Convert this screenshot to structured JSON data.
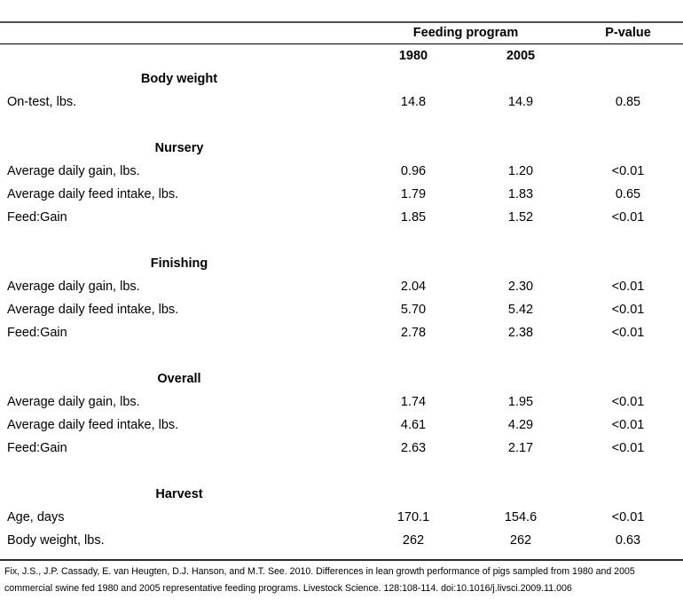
{
  "table": {
    "header": {
      "group_label": "Feeding program",
      "pvalue_label": "P-value",
      "years": [
        "1980",
        "2005"
      ]
    },
    "sections": [
      {
        "title": "Body weight",
        "rows": [
          {
            "label": "On-test, lbs.",
            "v1980": "14.8",
            "v2005": "14.9",
            "p": "0.85"
          }
        ]
      },
      {
        "title": "Nursery",
        "rows": [
          {
            "label": "Average daily gain, lbs.",
            "v1980": "0.96",
            "v2005": "1.20",
            "p": "<0.01"
          },
          {
            "label": "Average daily feed intake, lbs.",
            "v1980": "1.79",
            "v2005": "1.83",
            "p": "0.65"
          },
          {
            "label": "Feed:Gain",
            "v1980": "1.85",
            "v2005": "1.52",
            "p": "<0.01"
          }
        ]
      },
      {
        "title": "Finishing",
        "rows": [
          {
            "label": "Average daily gain, lbs.",
            "v1980": "2.04",
            "v2005": "2.30",
            "p": "<0.01"
          },
          {
            "label": "Average daily feed intake, lbs.",
            "v1980": "5.70",
            "v2005": "5.42",
            "p": "<0.01"
          },
          {
            "label": "Feed:Gain",
            "v1980": "2.78",
            "v2005": "2.38",
            "p": "<0.01"
          }
        ]
      },
      {
        "title": "Overall",
        "rows": [
          {
            "label": "Average daily gain, lbs.",
            "v1980": "1.74",
            "v2005": "1.95",
            "p": "<0.01"
          },
          {
            "label": "Average daily feed intake, lbs.",
            "v1980": "4.61",
            "v2005": "4.29",
            "p": "<0.01"
          },
          {
            "label": "Feed:Gain",
            "v1980": "2.63",
            "v2005": "2.17",
            "p": "<0.01"
          }
        ]
      },
      {
        "title": "Harvest",
        "rows": [
          {
            "label": "Age, days",
            "v1980": "170.1",
            "v2005": "154.6",
            "p": "<0.01"
          },
          {
            "label": "Body weight, lbs.",
            "v1980": "262",
            "v2005": "262",
            "p": "0.63"
          }
        ]
      }
    ]
  },
  "citation": "Fix, J.S., J.P. Cassady, E. van Heugten, D.J. Hanson, and M.T. See. 2010. Differences in lean growth performance of pigs sampled from 1980 and 2005 commercial swine fed 1980 and 2005 representative feeding programs. Livestock Science. 128:108-114. doi:10.1016/j.livsci.2009.11.006"
}
